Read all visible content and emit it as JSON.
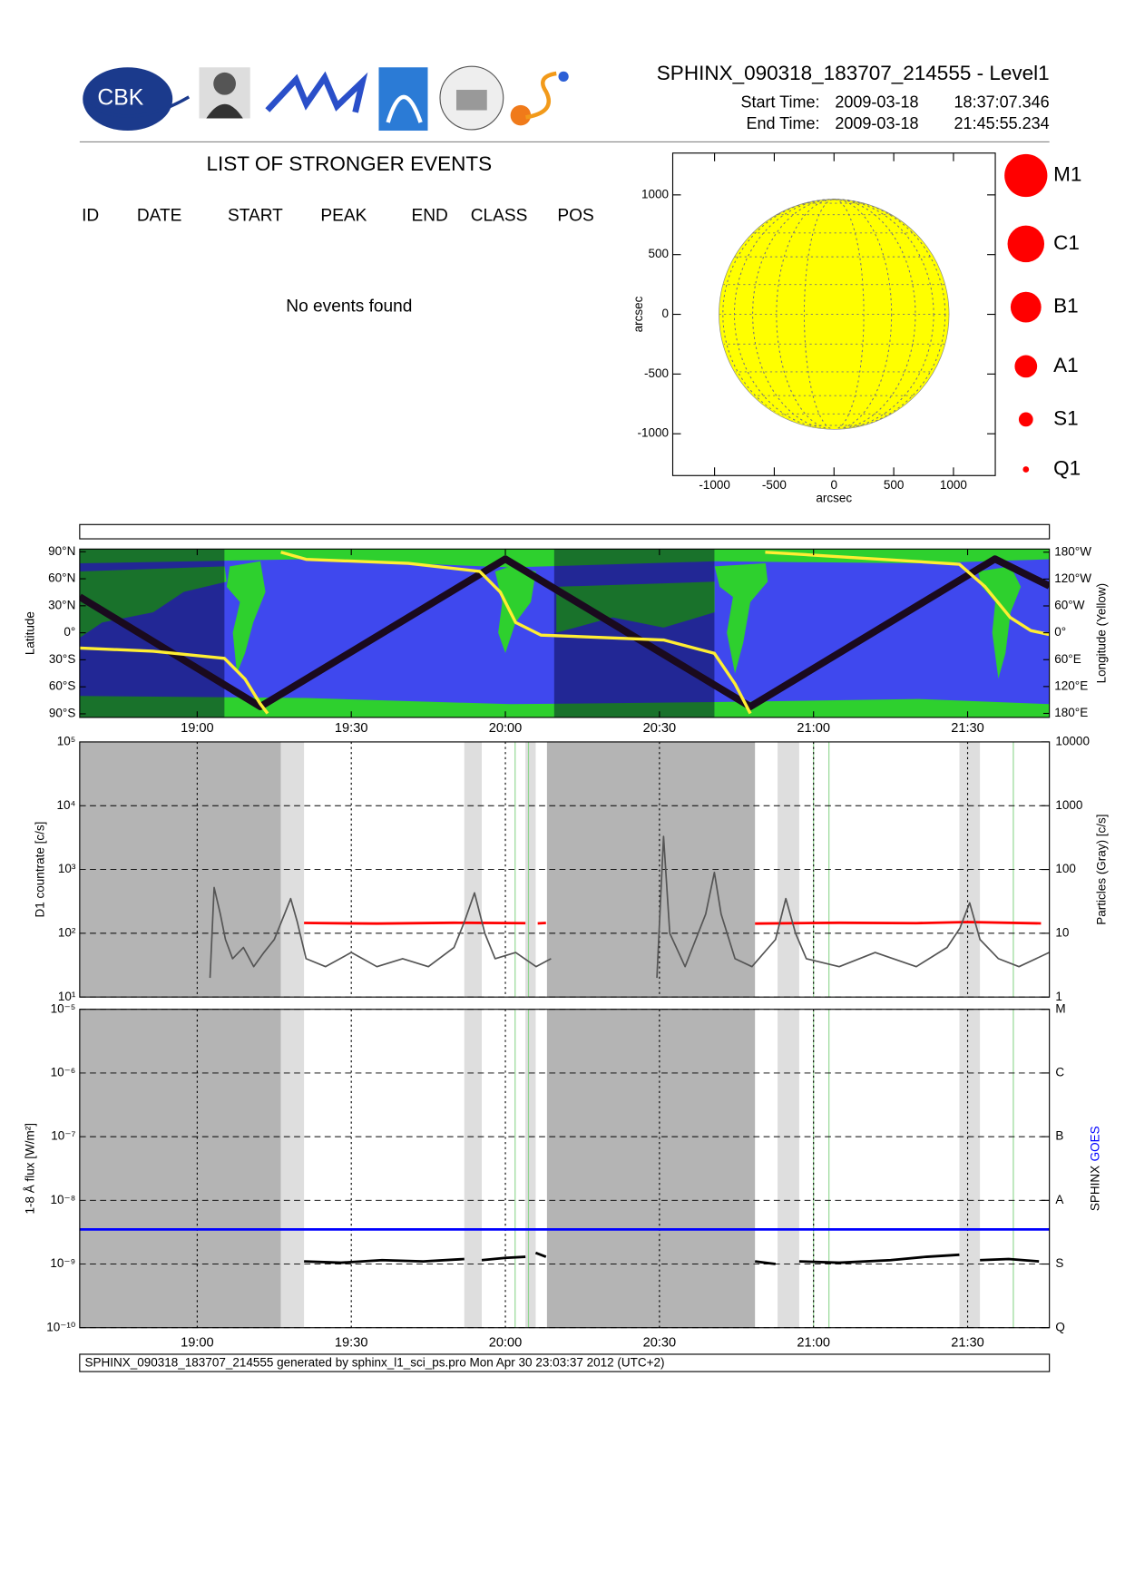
{
  "header": {
    "logo_text": "CBK",
    "title": "SPHINX_090318_183707_214555 - Level1",
    "start_label": "Start Time:",
    "start_date": "2009-03-18",
    "start_time": "18:37:07.346",
    "end_label": "End Time:",
    "end_date": "2009-03-18",
    "end_time": "21:45:55.234"
  },
  "events": {
    "title": "LIST OF STRONGER EVENTS",
    "columns": [
      "ID",
      "DATE",
      "START",
      "PEAK",
      "END",
      "CLASS",
      "POS"
    ],
    "message": "No events found"
  },
  "footer": "SPHINX_090318_183707_214555 generated by sphinx_l1_sci_ps.pro Mon Apr 30 23:03:37 2012 (UTC+2)",
  "chart_data": [
    {
      "type": "disk",
      "xlabel": "arcsec",
      "ylabel": "arcsec",
      "xlim": [
        -1350,
        1350
      ],
      "ylim": [
        -1350,
        1350
      ],
      "xticks": [
        -1000,
        -500,
        0,
        500,
        1000
      ],
      "yticks": [
        -1000,
        -500,
        0,
        500,
        1000
      ],
      "radius": 963,
      "color": "#ffff00",
      "legend": {
        "names": [
          "M1",
          "C1",
          "B1",
          "A1",
          "S1",
          "Q1"
        ],
        "color": "#ff0000"
      }
    },
    {
      "type": "map",
      "ylabel": "Latitude",
      "y2label": "Longitude (Yellow)",
      "xlim": [
        1117.12,
        1305.92
      ],
      "xticks": [
        {
          "value": 1140,
          "label": "19:00"
        },
        {
          "value": 1170,
          "label": "19:30"
        },
        {
          "value": 1200,
          "label": "20:00"
        },
        {
          "value": 1230,
          "label": "20:30"
        },
        {
          "value": 1260,
          "label": "21:00"
        },
        {
          "value": 1290,
          "label": "21:30"
        }
      ],
      "ylim": [
        -94,
        93
      ],
      "yticks": [
        {
          "value": 90,
          "label": "90°N"
        },
        {
          "value": 60,
          "label": "60°N"
        },
        {
          "value": 30,
          "label": "30°N"
        },
        {
          "value": 0,
          "label": "0°"
        },
        {
          "value": -30,
          "label": "30°S"
        },
        {
          "value": -60,
          "label": "60°S"
        },
        {
          "value": -90,
          "label": "90°S"
        }
      ],
      "y2lim": [
        189,
        -187
      ],
      "y2ticks": [
        {
          "value": -180,
          "label": "180°W"
        },
        {
          "value": -120,
          "label": "120°W"
        },
        {
          "value": -60,
          "label": "60°W"
        },
        {
          "value": 0,
          "label": "0°"
        },
        {
          "value": 60,
          "label": "60°E"
        },
        {
          "value": 120,
          "label": "120°E"
        },
        {
          "value": 180,
          "label": "180°E"
        }
      ],
      "shades": [
        {
          "color": "rgba(0,0,40,0.45)",
          "intervals": [
            [
              1117.12,
              1145.3
            ],
            [
              1209.5,
              1240.7
            ]
          ]
        }
      ],
      "series": [
        {
          "color": "#1a0a1e",
          "x": [
            1117.12,
            1152.3,
            1200,
            1247.7,
            1295.3,
            1305.92
          ],
          "values": [
            40,
            -82,
            82,
            -82,
            82,
            52
          ]
        },
        {
          "color": "#ffee33",
          "axis": "y2",
          "x": [
            1117.12,
            1131.4,
            1145.3,
            1149.3,
            1152.3,
            1153.7,
            1155,
            1156.3,
            1161.2,
            1181.1,
            1195.0,
            1199.0,
            1202.0,
            1206.9,
            1230.8,
            1240.7,
            1244.7,
            1247.7,
            1249,
            1250.6,
            1270.5,
            1288.4,
            1293.4,
            1298.3,
            1302.3,
            1305.92
          ],
          "values": [
            34,
            41,
            57,
            103,
            159,
            180,
            null,
            -180,
            -164,
            -155,
            -137,
            -91,
            -23,
            5,
            16,
            46,
            114,
            180,
            null,
            -180,
            -166,
            -153,
            -103,
            -34,
            -5,
            4
          ]
        }
      ]
    },
    {
      "type": "log-line",
      "ylabel": "D1 countrate [c/s]",
      "y2label": "Particles (Gray) [c/s]",
      "xlim": [
        1117.12,
        1305.92
      ],
      "xgrid": [
        1140,
        1170,
        1200,
        1230,
        1260,
        1290
      ],
      "ylim": [
        10,
        100000
      ],
      "yticks": [
        {
          "value": 100000,
          "label": "10⁵"
        },
        {
          "value": 10000,
          "label": "10⁴"
        },
        {
          "value": 1000,
          "label": "10³"
        },
        {
          "value": 100,
          "label": "10²"
        },
        {
          "value": 10,
          "label": "10¹"
        }
      ],
      "y2lim": [
        1,
        10000
      ],
      "y2ticks": [
        10000,
        1000,
        100,
        10,
        1
      ],
      "shades": [
        {
          "color": "#b4b4b4",
          "intervals": [
            [
              1117.12,
              1156.3
            ],
            [
              1208.1,
              1248.6
            ]
          ]
        },
        {
          "color": "#dedede",
          "intervals": [
            [
              1156.3,
              1160.8
            ],
            [
              1192.0,
              1195.4
            ],
            [
              1203.9,
              1205.9
            ],
            [
              1253.0,
              1257.2
            ],
            [
              1288.4,
              1292.4
            ]
          ]
        }
      ],
      "markers": {
        "color": "#8fd68f",
        "x": [
          1201.9,
          1204.5,
          1260.0,
          1263.0,
          1298.9
        ]
      },
      "series": [
        {
          "color": "#ff0000",
          "x": [
            1160.8,
            1175,
            1190,
            1203.9,
            1205,
            1206.3,
            1207.9,
            1228,
            1248.6,
            1265,
            1280,
            1290,
            1304.3
          ],
          "values": [
            145,
            142,
            146,
            144,
            null,
            143,
            145,
            null,
            142,
            146,
            144,
            150,
            143
          ]
        },
        {
          "color": "#555555",
          "axis": "y2",
          "x": [
            1142.5,
            1143.3,
            1144.5,
            1145.5,
            1146.9,
            1149,
            1151,
            1153,
            1155,
            1157,
            1158.2,
            1159.5,
            1161.2,
            1165,
            1170,
            1175,
            1180,
            1185,
            1190,
            1192,
            1194,
            1196,
            1198,
            1202,
            1206,
            1208.9,
            1220,
            1229.5,
            1230.8,
            1232,
            1235,
            1239,
            1240.7,
            1242,
            1244.7,
            1248,
            1252.6,
            1254.6,
            1256.5,
            1258.6,
            1265,
            1272,
            1280,
            1286,
            1288.5,
            1290.4,
            1292.4,
            1296,
            1300,
            1305.9
          ],
          "values": [
            2,
            52,
            20,
            8,
            4,
            6,
            3,
            5,
            8,
            20,
            35,
            15,
            4,
            3,
            5,
            3,
            4,
            3,
            6,
            15,
            43,
            10,
            4,
            5,
            3,
            4,
            null,
            2,
            330,
            10,
            3,
            20,
            90,
            20,
            4,
            3,
            8,
            35,
            10,
            4,
            3,
            5,
            3,
            6,
            12,
            30,
            8,
            4,
            3,
            5
          ]
        }
      ]
    },
    {
      "type": "log-line",
      "ylabel": "1-8 Å flux [W/m²]",
      "xlim": [
        1117.12,
        1305.92
      ],
      "xticks": [
        {
          "value": 1140,
          "label": "19:00"
        },
        {
          "value": 1170,
          "label": "19:30"
        },
        {
          "value": 1200,
          "label": "20:00"
        },
        {
          "value": 1230,
          "label": "20:30"
        },
        {
          "value": 1260,
          "label": "21:00"
        },
        {
          "value": 1290,
          "label": "21:30"
        }
      ],
      "ylim": [
        1e-10,
        1e-05
      ],
      "yticks": [
        {
          "value": 1e-05,
          "label": "10⁻⁵"
        },
        {
          "value": 1e-06,
          "label": "10⁻⁶"
        },
        {
          "value": 1e-07,
          "label": "10⁻⁷"
        },
        {
          "value": 1e-08,
          "label": "10⁻⁸"
        },
        {
          "value": 1e-09,
          "label": "10⁻⁹"
        },
        {
          "value": 1e-10,
          "label": "10⁻¹⁰"
        }
      ],
      "class_ticks": [
        {
          "value": 1e-05,
          "label": "M"
        },
        {
          "value": 1e-06,
          "label": "C"
        },
        {
          "value": 1e-07,
          "label": "B"
        },
        {
          "value": 1e-08,
          "label": "A"
        },
        {
          "value": 1e-09,
          "label": "S"
        },
        {
          "value": 1e-10,
          "label": "Q"
        }
      ],
      "shades": [
        {
          "color": "#b4b4b4",
          "intervals": [
            [
              1117.12,
              1156.3
            ],
            [
              1208.1,
              1248.6
            ]
          ]
        },
        {
          "color": "#dedede",
          "intervals": [
            [
              1156.3,
              1160.8
            ],
            [
              1192.0,
              1195.4
            ],
            [
              1203.9,
              1205.9
            ],
            [
              1253.0,
              1257.2
            ],
            [
              1288.4,
              1292.4
            ]
          ]
        }
      ],
      "markers": {
        "color": "#8fd68f",
        "x": [
          1201.9,
          1204.5,
          1260.0,
          1263.0,
          1298.9
        ]
      },
      "series": [
        {
          "name": "SPHINX",
          "color": "#000000",
          "x": [
            1160.8,
            1168,
            1176,
            1184,
            1192,
            1193,
            1195.4,
            1200,
            1203.9,
            1205,
            1205.9,
            1207.9,
            1228,
            1248.6,
            1252.6,
            1255,
            1257.2,
            1265,
            1275,
            1282,
            1288.4,
            1290,
            1292.4,
            1298,
            1303.9
          ],
          "values": [
            1.1e-09,
            1.05e-09,
            1.15e-09,
            1.1e-09,
            1.2e-09,
            null,
            1.15e-09,
            1.25e-09,
            1.3e-09,
            null,
            1.5e-09,
            1.3e-09,
            null,
            1.1e-09,
            1e-09,
            null,
            1.1e-09,
            1.05e-09,
            1.15e-09,
            1.3e-09,
            1.4e-09,
            null,
            1.15e-09,
            1.2e-09,
            1.1e-09
          ]
        },
        {
          "name": "GOES",
          "color": "#0000ff",
          "x": [
            1117.12,
            1305.92
          ],
          "values": [
            3.5e-09,
            3.5e-09
          ]
        }
      ]
    }
  ]
}
